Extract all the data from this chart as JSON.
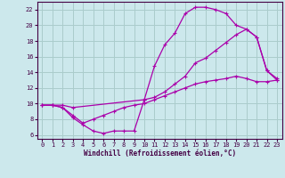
{
  "xlabel": "Windchill (Refroidissement éolien,°C)",
  "background_color": "#cce8ec",
  "grid_color": "#aacccc",
  "line_color": "#aa00aa",
  "xlim": [
    -0.5,
    23.5
  ],
  "ylim": [
    5.5,
    23.0
  ],
  "xticks": [
    0,
    1,
    2,
    3,
    4,
    5,
    6,
    7,
    8,
    9,
    10,
    11,
    12,
    13,
    14,
    15,
    16,
    17,
    18,
    19,
    20,
    21,
    22,
    23
  ],
  "yticks": [
    6,
    8,
    10,
    12,
    14,
    16,
    18,
    20,
    22
  ],
  "curve1_x": [
    0,
    1,
    2,
    3,
    10,
    11,
    12,
    13,
    14,
    15,
    16,
    17,
    18,
    19,
    20,
    21,
    22,
    23
  ],
  "curve1_y": [
    9.8,
    9.8,
    9.8,
    9.5,
    10.5,
    14.8,
    17.5,
    19.0,
    21.5,
    22.3,
    22.3,
    22.0,
    21.5,
    20.0,
    19.5,
    18.5,
    14.2,
    13.0
  ],
  "curve2_x": [
    0,
    1,
    2,
    3,
    4,
    5,
    6,
    7,
    8,
    9,
    10,
    11,
    12,
    13,
    14,
    15,
    16,
    17,
    18,
    19,
    20,
    21,
    22,
    23
  ],
  "curve2_y": [
    9.8,
    9.8,
    9.5,
    8.2,
    7.3,
    6.5,
    6.2,
    6.5,
    6.5,
    6.5,
    10.5,
    10.8,
    11.5,
    12.5,
    13.5,
    15.2,
    15.8,
    16.8,
    17.8,
    18.8,
    19.5,
    18.5,
    14.2,
    13.2
  ],
  "curve3_x": [
    0,
    1,
    2,
    3,
    4,
    5,
    6,
    7,
    8,
    9,
    10,
    11,
    12,
    13,
    14,
    15,
    16,
    17,
    18,
    19,
    20,
    21,
    22,
    23
  ],
  "curve3_y": [
    9.8,
    9.8,
    9.5,
    8.5,
    7.5,
    8.0,
    8.5,
    9.0,
    9.5,
    9.8,
    10.0,
    10.5,
    11.0,
    11.5,
    12.0,
    12.5,
    12.8,
    13.0,
    13.2,
    13.5,
    13.2,
    12.8,
    12.8,
    13.0
  ]
}
